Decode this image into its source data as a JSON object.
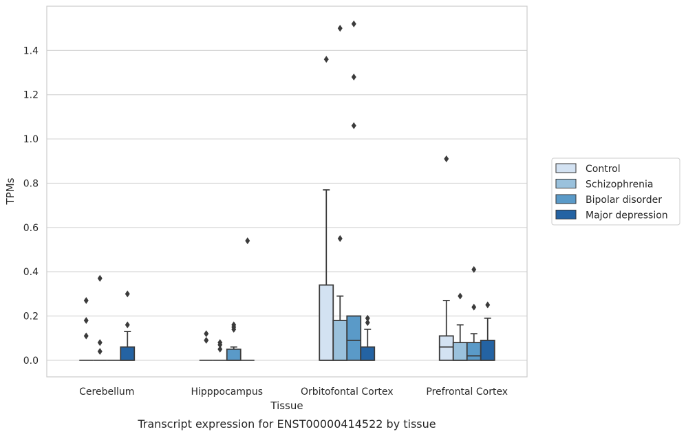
{
  "chart_data": {
    "type": "box",
    "caption": "Transcript expression for ENST00000414522 by tissue",
    "xlabel": "Tissue",
    "ylabel": "TPMs",
    "ylim": [
      -0.075,
      1.6
    ],
    "yticks": [
      0.0,
      0.2,
      0.4,
      0.6,
      0.8,
      1.0,
      1.2,
      1.4
    ],
    "ytick_labels": [
      "0.0",
      "0.2",
      "0.4",
      "0.6",
      "0.8",
      "1.0",
      "1.2",
      "1.4"
    ],
    "grid": "horizontal",
    "legend_position": "right",
    "categories": [
      "Cerebellum",
      "Hipppocampus",
      "Orbitofontal Cortex",
      "Prefrontal Cortex"
    ],
    "series": [
      {
        "name": "Control",
        "color": "#d3e2f2",
        "boxes": [
          {
            "q1": 0,
            "median": 0,
            "q3": 0,
            "whisker_low": 0,
            "whisker_high": 0,
            "outliers": [
              0.27,
              0.18,
              0.11
            ]
          },
          {
            "q1": 0,
            "median": 0,
            "q3": 0,
            "whisker_low": 0,
            "whisker_high": 0,
            "outliers": [
              0.12,
              0.09
            ]
          },
          {
            "q1": 0,
            "median": 0,
            "q3": 0.34,
            "whisker_low": 0,
            "whisker_high": 0.77,
            "outliers": [
              1.36
            ]
          },
          {
            "q1": 0,
            "median": 0.06,
            "q3": 0.11,
            "whisker_low": 0,
            "whisker_high": 0.27,
            "outliers": [
              0.91
            ]
          }
        ]
      },
      {
        "name": "Schizophrenia",
        "color": "#9ac1dc",
        "boxes": [
          {
            "q1": 0,
            "median": 0,
            "q3": 0,
            "whisker_low": 0,
            "whisker_high": 0,
            "outliers": [
              0.37,
              0.08,
              0.04
            ]
          },
          {
            "q1": 0,
            "median": 0,
            "q3": 0,
            "whisker_low": 0,
            "whisker_high": 0,
            "outliers": [
              0.08,
              0.07,
              0.05
            ]
          },
          {
            "q1": 0,
            "median": 0,
            "q3": 0.18,
            "whisker_low": 0,
            "whisker_high": 0.29,
            "outliers": [
              1.5,
              0.55
            ]
          },
          {
            "q1": 0,
            "median": 0,
            "q3": 0.08,
            "whisker_low": 0,
            "whisker_high": 0.16,
            "outliers": [
              0.29
            ]
          }
        ]
      },
      {
        "name": "Bipolar disorder",
        "color": "#5a9ac8",
        "boxes": [
          {
            "q1": 0,
            "median": 0,
            "q3": 0,
            "whisker_low": 0,
            "whisker_high": 0,
            "outliers": []
          },
          {
            "q1": 0,
            "median": 0,
            "q3": 0.05,
            "whisker_low": 0,
            "whisker_high": 0.06,
            "outliers": [
              0.16,
              0.15,
              0.14
            ]
          },
          {
            "q1": 0,
            "median": 0.09,
            "q3": 0.2,
            "whisker_low": 0,
            "whisker_high": 0.2,
            "outliers": [
              1.52,
              1.28,
              1.06
            ]
          },
          {
            "q1": 0,
            "median": 0.02,
            "q3": 0.08,
            "whisker_low": 0,
            "whisker_high": 0.12,
            "outliers": [
              0.41,
              0.24
            ]
          }
        ]
      },
      {
        "name": "Major depression",
        "color": "#2463a3",
        "boxes": [
          {
            "q1": 0,
            "median": 0,
            "q3": 0.06,
            "whisker_low": 0,
            "whisker_high": 0.13,
            "outliers": [
              0.3,
              0.16
            ]
          },
          {
            "q1": 0,
            "median": 0,
            "q3": 0,
            "whisker_low": 0,
            "whisker_high": 0,
            "outliers": [
              0.54
            ]
          },
          {
            "q1": 0,
            "median": 0,
            "q3": 0.06,
            "whisker_low": 0,
            "whisker_high": 0.14,
            "outliers": [
              0.19,
              0.17
            ]
          },
          {
            "q1": 0,
            "median": 0,
            "q3": 0.09,
            "whisker_low": 0,
            "whisker_high": 0.19,
            "outliers": [
              0.25
            ]
          }
        ]
      }
    ]
  }
}
